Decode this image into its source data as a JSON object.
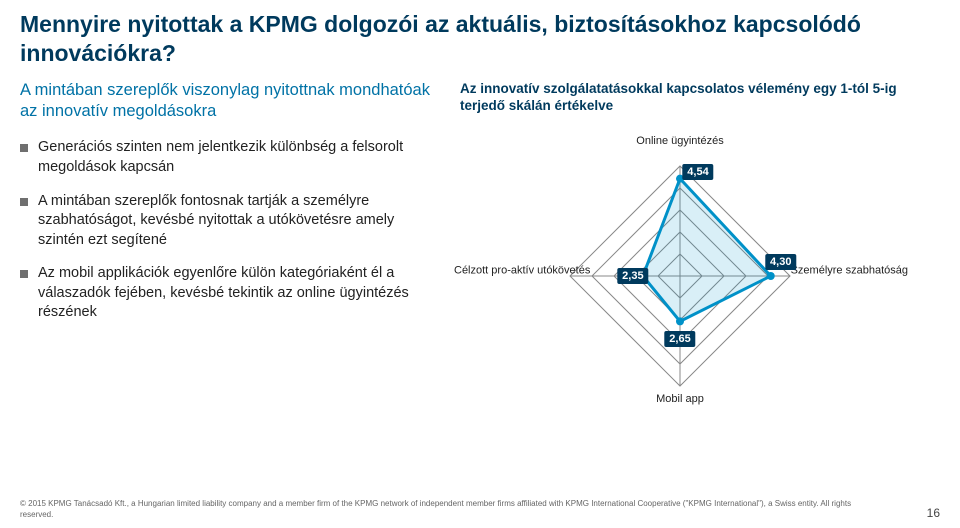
{
  "title": "Mennyire nyitottak a KPMG dolgozói az aktuális, biztosításokhoz kapcsolódó innovációkra?",
  "subtitle": "A mintában szereplők viszonylag nyitottnak mondhatóak az innovatív megoldásokra",
  "bullets": [
    "Generációs szinten nem jelentkezik különbség a felsorolt megoldások kapcsán",
    "A mintában szereplők fontosnak tartják a személyre szabhatóságot, kevésbé nyitottak a utókövetésre amely szintén ezt segítené",
    "Az mobil applikációk egyenlőre külön kategóriaként él a válaszadók fejében, kevésbé tekintik az online ügyintézés részének"
  ],
  "chart": {
    "title": "Az innovatív szolgálatatásokkal kapcsolatos vélemény  egy 1-tól 5-ig terjedő skálán értékelve",
    "type": "radar",
    "scale_min": 1,
    "scale_max": 5,
    "axes": [
      {
        "label": "Online ügyintézés",
        "value": 4.54,
        "display": "4,54"
      },
      {
        "label": "Személyre szabhatóság",
        "value": 4.3,
        "display": "4,30"
      },
      {
        "label": "Mobil app",
        "value": 2.65,
        "display": "2,65"
      },
      {
        "label": "Célzott pro-aktív utókövetés",
        "value": 2.35,
        "display": "2,35"
      }
    ],
    "grid_color": "#888888",
    "series_color": "#0091c8",
    "series_fill_opacity": 0.15,
    "badge_bg": "#003a5d",
    "badge_text": "#ffffff"
  },
  "footer": {
    "copyright": "© 2015 KPMG Tanácsadó Kft., a Hungarian limited liability company and a member firm of the KPMG network of independent member firms affiliated with KPMG International Cooperative (\"KPMG International\"), a Swiss entity. All rights reserved.",
    "page": "16"
  },
  "colors": {
    "title": "#003a5d",
    "subtitle": "#0072a6",
    "body": "#222222",
    "bullet": "#6f6f6f"
  }
}
